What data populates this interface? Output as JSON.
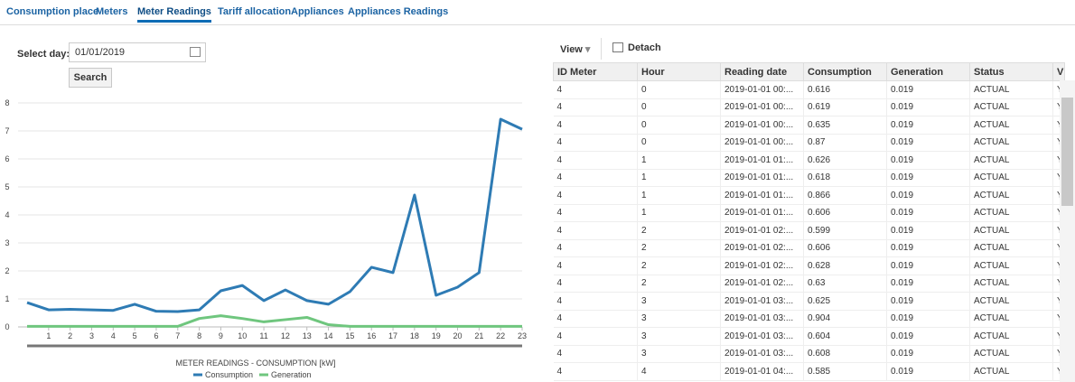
{
  "tabs": [
    "Consumption place",
    "Meters",
    "Meter Readings",
    "Tariff allocation",
    "Appliances",
    "Appliances Readings"
  ],
  "active_tab": 2,
  "filter": {
    "label": "Select day:",
    "value": "01/01/2019",
    "button": "Search"
  },
  "toolbar": {
    "view": "View",
    "detach": "Detach"
  },
  "chart_data": {
    "type": "line",
    "title": "METER READINGS - CONSUMPTION [kW]",
    "x": [
      0,
      1,
      2,
      3,
      4,
      5,
      6,
      7,
      8,
      9,
      10,
      11,
      12,
      13,
      14,
      15,
      16,
      17,
      18,
      19,
      20,
      21,
      22,
      23
    ],
    "xlim": [
      0,
      23
    ],
    "xticks": [
      1,
      2,
      3,
      4,
      5,
      6,
      7,
      8,
      9,
      10,
      11,
      12,
      13,
      14,
      15,
      16,
      17,
      18,
      19,
      20,
      21,
      22,
      23
    ],
    "ylim": [
      0,
      8
    ],
    "yticks": [
      0,
      1,
      2,
      3,
      4,
      5,
      6,
      7,
      8
    ],
    "grid": true,
    "series": [
      {
        "name": "Consumption",
        "color": "#2e7bb4",
        "values": [
          0.87,
          0.61,
          0.63,
          0.61,
          0.59,
          0.81,
          0.56,
          0.55,
          0.61,
          1.29,
          1.48,
          0.94,
          1.32,
          0.94,
          0.81,
          1.26,
          2.13,
          1.94,
          4.71,
          1.13,
          1.42,
          1.94,
          7.42,
          7.06
        ]
      },
      {
        "name": "Generation",
        "color": "#6fc67e",
        "values": [
          0.02,
          0.02,
          0.02,
          0.02,
          0.02,
          0.02,
          0.02,
          0.02,
          0.3,
          0.4,
          0.3,
          0.18,
          0.26,
          0.34,
          0.08,
          0.02,
          0.02,
          0.02,
          0.02,
          0.02,
          0.02,
          0.02,
          0.02,
          0.02
        ]
      }
    ]
  },
  "table": {
    "columns": [
      "ID Meter",
      "Hour",
      "Reading date",
      "Consumption",
      "Generation",
      "Status",
      "V"
    ],
    "rows": [
      [
        "4",
        "0",
        "2019-01-01 00:...",
        "0.616",
        "0.019",
        "ACTUAL",
        "Y"
      ],
      [
        "4",
        "0",
        "2019-01-01 00:...",
        "0.619",
        "0.019",
        "ACTUAL",
        "Y"
      ],
      [
        "4",
        "0",
        "2019-01-01 00:...",
        "0.635",
        "0.019",
        "ACTUAL",
        "Y"
      ],
      [
        "4",
        "0",
        "2019-01-01 00:...",
        "0.87",
        "0.019",
        "ACTUAL",
        "Y"
      ],
      [
        "4",
        "1",
        "2019-01-01 01:...",
        "0.626",
        "0.019",
        "ACTUAL",
        "Y"
      ],
      [
        "4",
        "1",
        "2019-01-01 01:...",
        "0.618",
        "0.019",
        "ACTUAL",
        "Y"
      ],
      [
        "4",
        "1",
        "2019-01-01 01:...",
        "0.866",
        "0.019",
        "ACTUAL",
        "Y"
      ],
      [
        "4",
        "1",
        "2019-01-01 01:...",
        "0.606",
        "0.019",
        "ACTUAL",
        "Y"
      ],
      [
        "4",
        "2",
        "2019-01-01 02:...",
        "0.599",
        "0.019",
        "ACTUAL",
        "Y"
      ],
      [
        "4",
        "2",
        "2019-01-01 02:...",
        "0.606",
        "0.019",
        "ACTUAL",
        "Y"
      ],
      [
        "4",
        "2",
        "2019-01-01 02:...",
        "0.628",
        "0.019",
        "ACTUAL",
        "Y"
      ],
      [
        "4",
        "2",
        "2019-01-01 02:...",
        "0.63",
        "0.019",
        "ACTUAL",
        "Y"
      ],
      [
        "4",
        "3",
        "2019-01-01 03:...",
        "0.625",
        "0.019",
        "ACTUAL",
        "Y"
      ],
      [
        "4",
        "3",
        "2019-01-01 03:...",
        "0.904",
        "0.019",
        "ACTUAL",
        "Y"
      ],
      [
        "4",
        "3",
        "2019-01-01 03:...",
        "0.604",
        "0.019",
        "ACTUAL",
        "Y"
      ],
      [
        "4",
        "3",
        "2019-01-01 03:...",
        "0.608",
        "0.019",
        "ACTUAL",
        "Y"
      ],
      [
        "4",
        "4",
        "2019-01-01 04:...",
        "0.585",
        "0.019",
        "ACTUAL",
        "Y"
      ]
    ]
  }
}
